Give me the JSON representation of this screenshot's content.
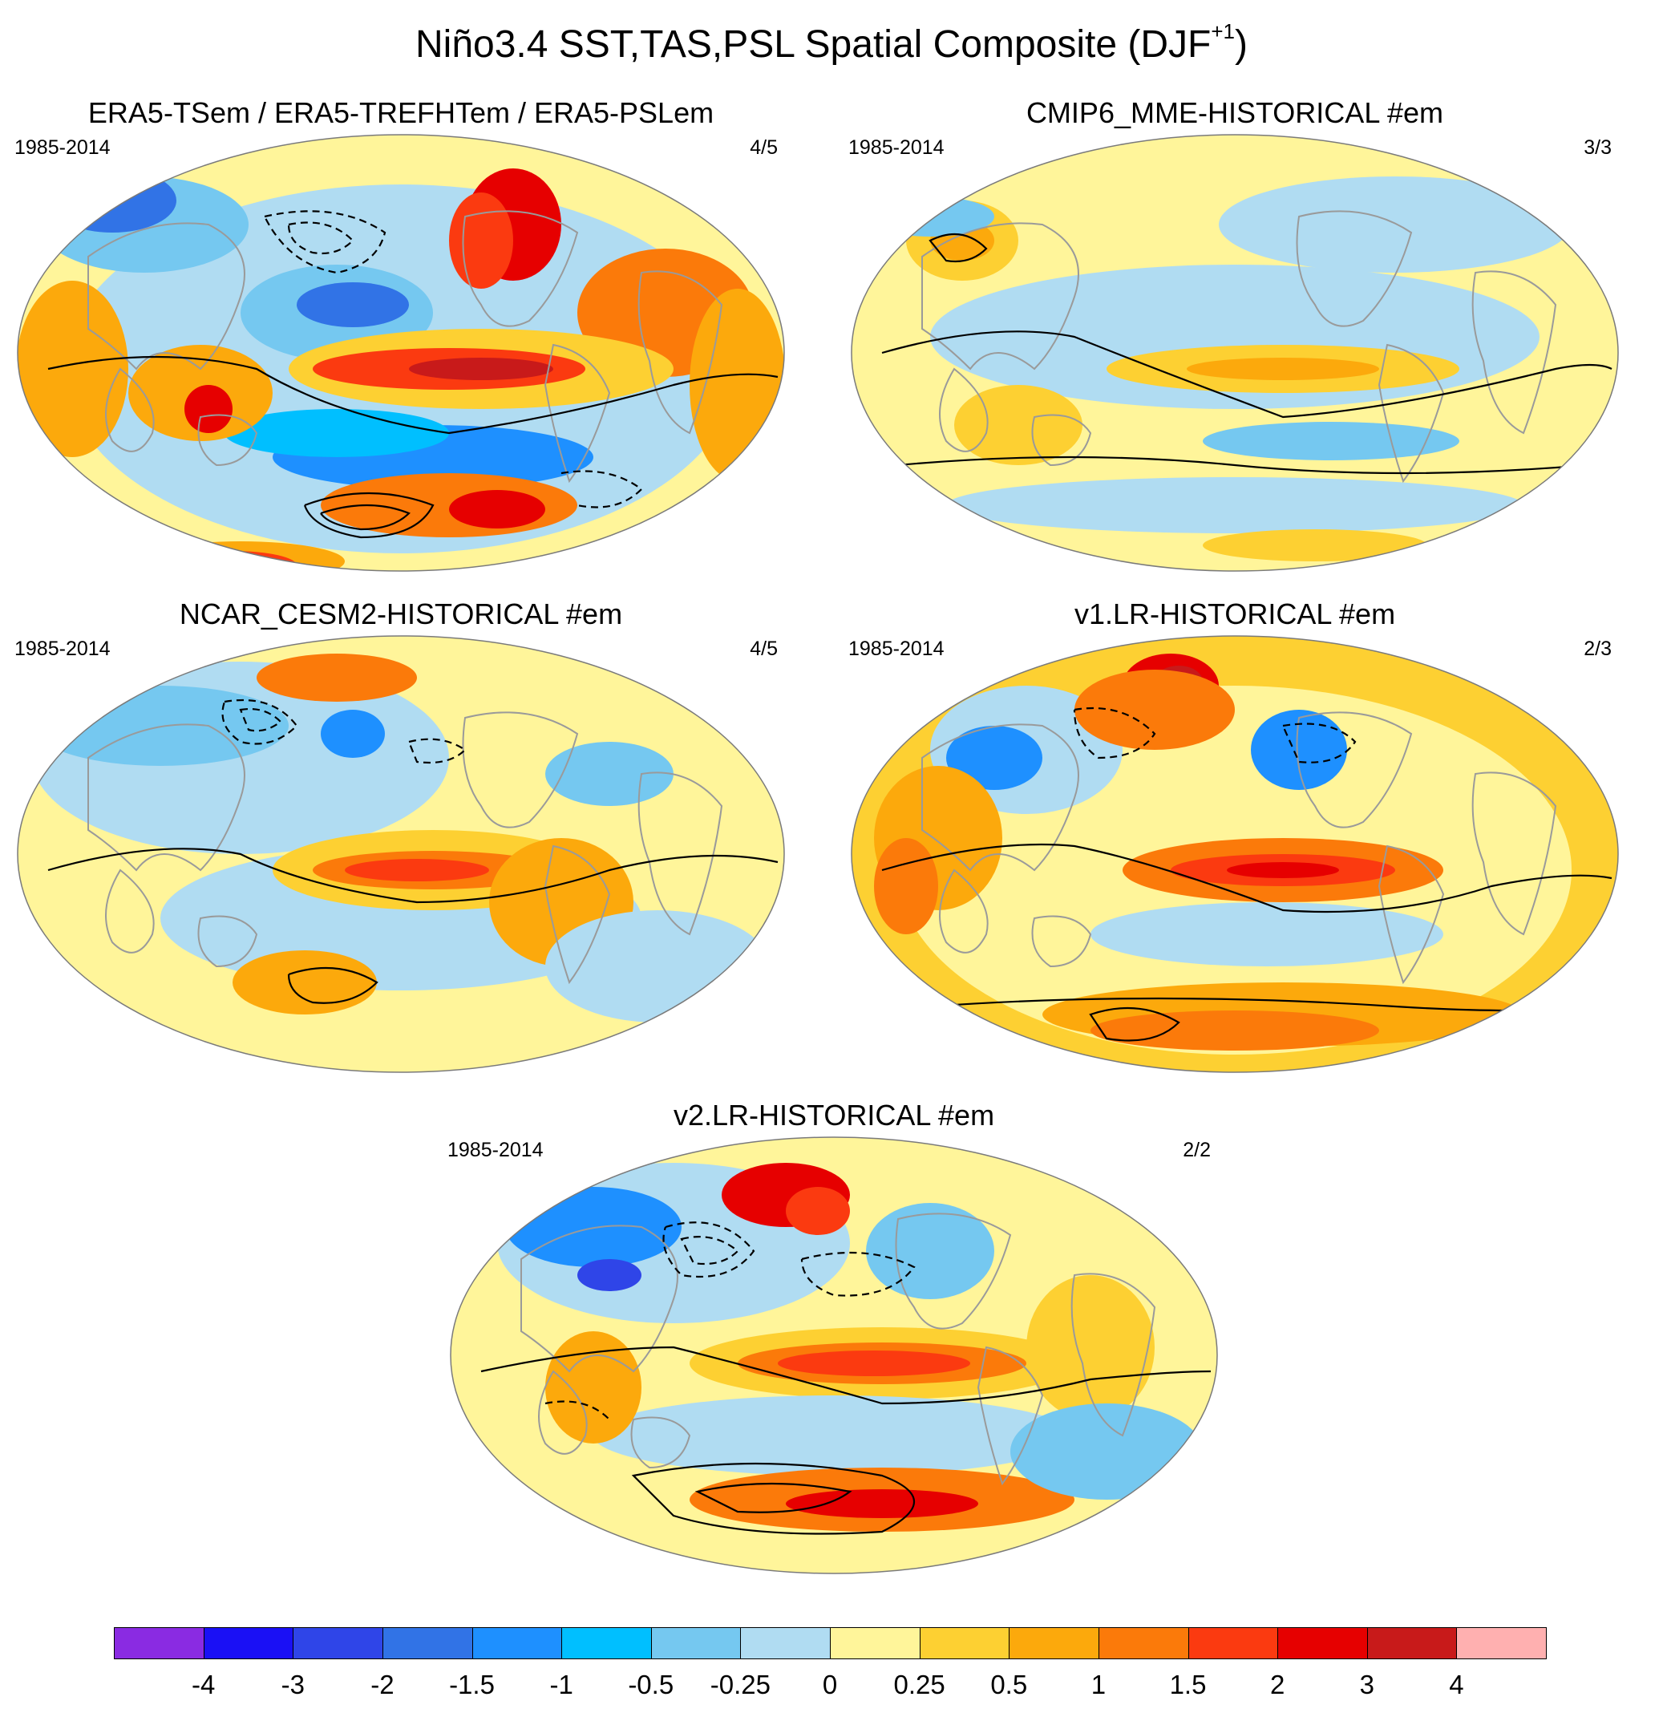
{
  "figure": {
    "title_main": "Niño3.4 SST,TAS,PSL Spatial Composite (DJF",
    "title_sup": "+1",
    "title_close": ")"
  },
  "panels": [
    {
      "title": "ERA5-TSem / ERA5-TREFHTem / ERA5-PSLem",
      "years": "1985-2014",
      "count": "4/5",
      "style": "obs"
    },
    {
      "title": "CMIP6_MME-HISTORICAL  #em",
      "years": "1985-2014",
      "count": "3/3",
      "style": "mme"
    },
    {
      "title": "NCAR_CESM2-HISTORICAL  #em",
      "years": "1985-2014",
      "count": "4/5",
      "style": "cesm"
    },
    {
      "title": "v1.LR-HISTORICAL  #em",
      "years": "1985-2014",
      "count": "2/3",
      "style": "v1"
    },
    {
      "title": "v2.LR-HISTORICAL  #em",
      "years": "1985-2014",
      "count": "2/2",
      "style": "v2"
    }
  ],
  "colorbar": {
    "labels": [
      "-4",
      "-3",
      "-2",
      "-1.5",
      "-1",
      "-0.5",
      "-0.25",
      "0",
      "0.25",
      "0.5",
      "1",
      "1.5",
      "2",
      "3",
      "4"
    ],
    "colors": [
      "#8a2be2",
      "#1a10f5",
      "#2f45e8",
      "#3173e6",
      "#1e90ff",
      "#00bfff",
      "#75c8f0",
      "#b0dcf2",
      "#fff59a",
      "#fdd032",
      "#fca90c",
      "#fb7a0a",
      "#fb3a10",
      "#e60000",
      "#c81a1a",
      "#ffb0b0"
    ]
  },
  "chart_data": {
    "type": "heatmap",
    "title": "Niño3.4 SST,TAS,PSL Spatial Composite (DJF+1)",
    "panels": [
      "ERA5-TSem / ERA5-TREFHTem / ERA5-PSLem",
      "CMIP6_MME-HISTORICAL  #em",
      "NCAR_CESM2-HISTORICAL  #em",
      "v1.LR-HISTORICAL  #em",
      "v2.LR-HISTORICAL  #em"
    ],
    "period": "1985-2014",
    "colorbar_levels": [
      -4,
      -3,
      -2,
      -1.5,
      -1,
      -0.5,
      -0.25,
      0,
      0.25,
      0.5,
      1,
      1.5,
      2,
      3,
      4
    ],
    "fields": [
      "SST/TAS anomaly (shaded)",
      "PSL anomaly (contours)"
    ]
  }
}
